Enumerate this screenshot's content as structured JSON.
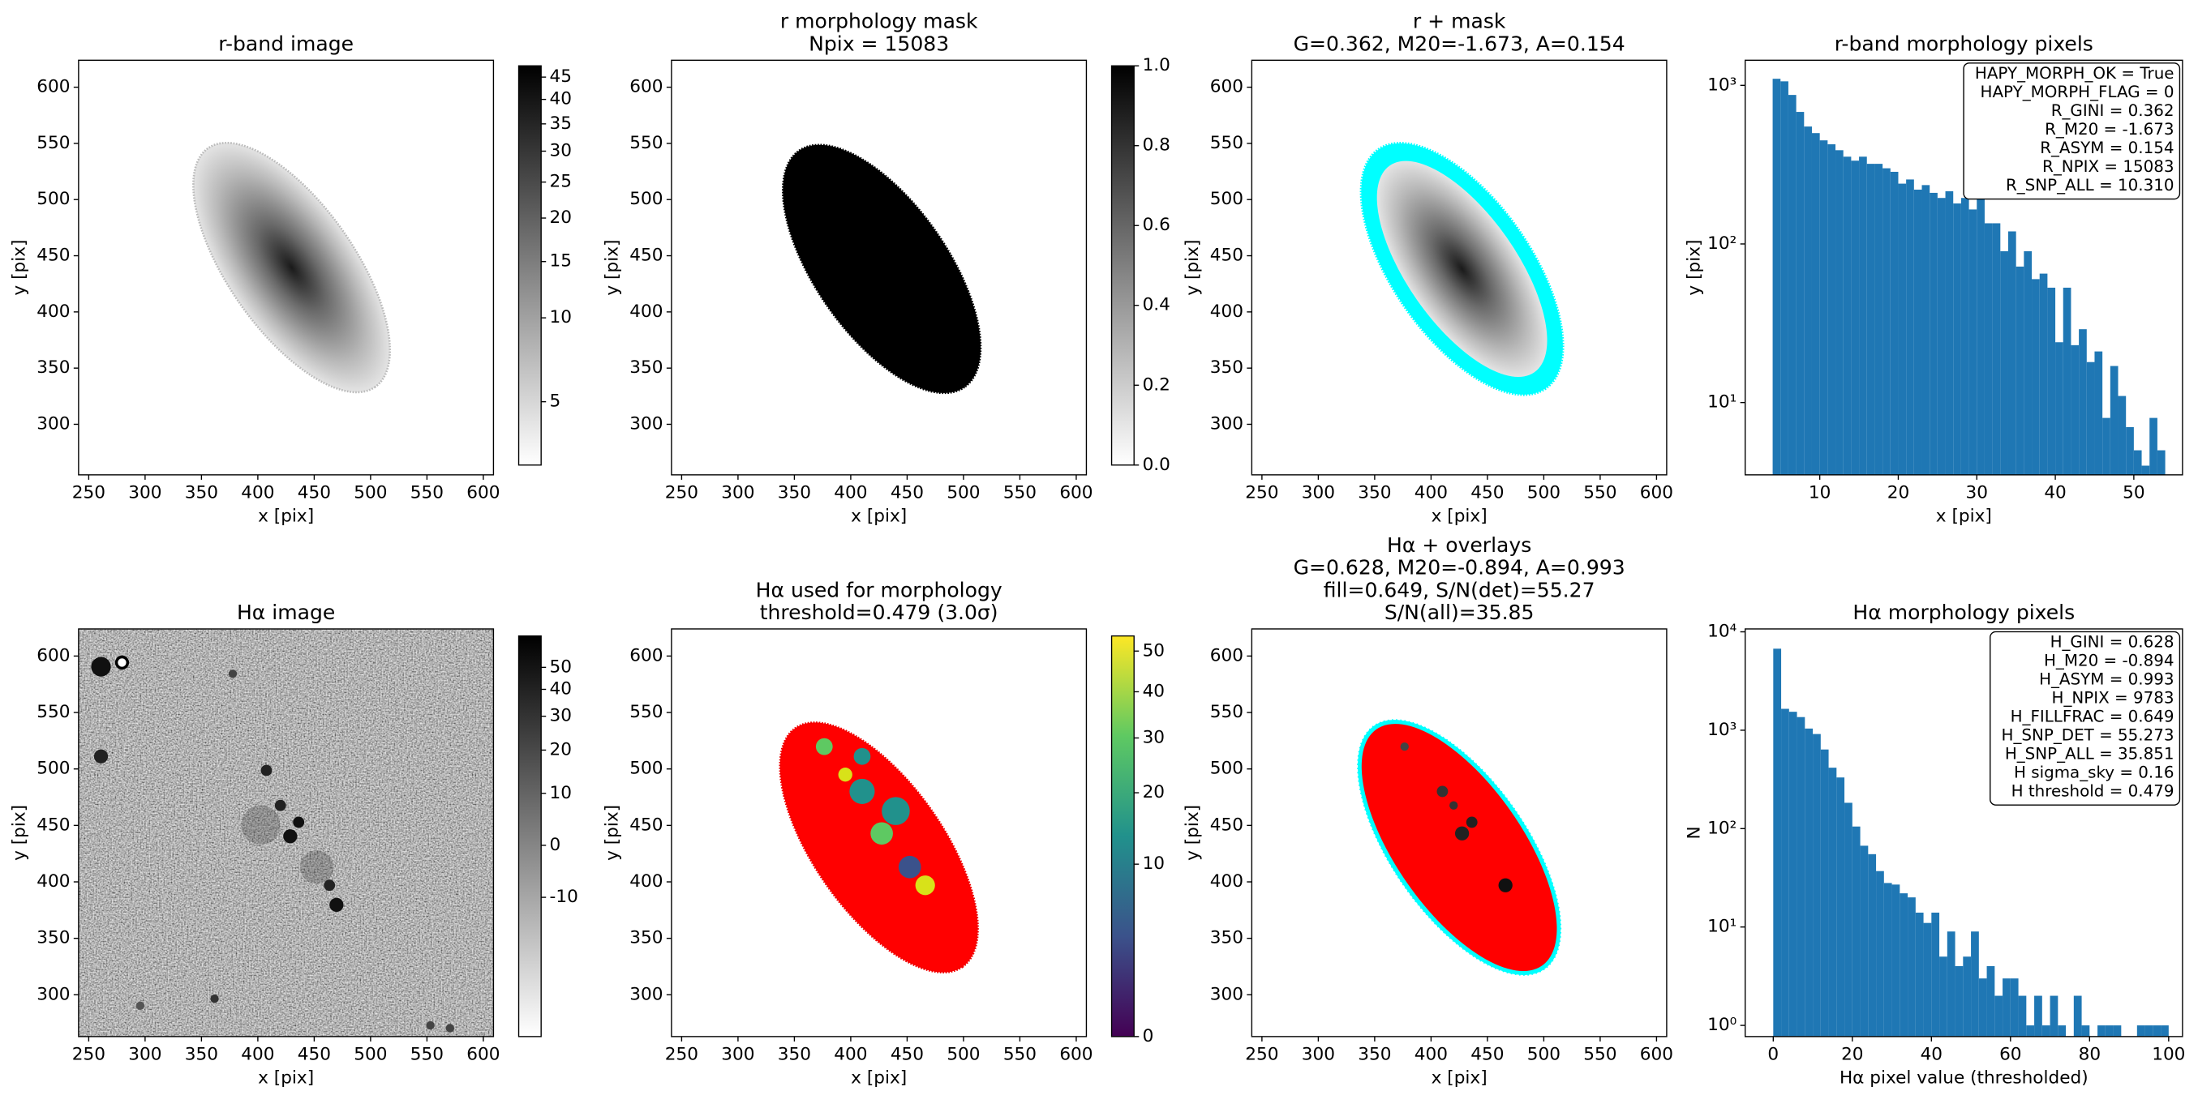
{
  "chart_data": [
    {
      "type": "image",
      "title": [
        "r-band image"
      ],
      "xlabel": "x [pix]",
      "ylabel": "y [pix]",
      "xlim": [
        241,
        609
      ],
      "ylim": [
        255,
        624
      ],
      "xticks": [
        250,
        300,
        350,
        400,
        450,
        500,
        550,
        600
      ],
      "yticks": [
        300,
        350,
        400,
        450,
        500,
        550,
        600
      ],
      "colorbar": {
        "colormap": "gray_r",
        "scale": "power",
        "exponent": 0.25,
        "lim": [
          2.7,
          47.7
        ],
        "ticks": [
          5,
          10,
          15,
          20,
          25,
          30,
          35,
          40,
          45
        ]
      }
    },
    {
      "type": "image",
      "title": [
        "r morphology mask",
        "Npix = 15083"
      ],
      "xlabel": "x [pix]",
      "ylabel": "y [pix]",
      "xlim": [
        241,
        609
      ],
      "ylim": [
        255,
        624
      ],
      "xticks": [
        250,
        300,
        350,
        400,
        450,
        500,
        550,
        600
      ],
      "yticks": [
        300,
        350,
        400,
        450,
        500,
        550,
        600
      ],
      "colorbar": {
        "colormap": "gray_r",
        "scale": "linear",
        "lim": [
          0,
          1
        ],
        "ticks": [
          {
            "value": 0,
            "label": "0.0"
          },
          {
            "value": 0.2,
            "label": "0.2"
          },
          {
            "value": 0.4,
            "label": "0.4"
          },
          {
            "value": 0.6,
            "label": "0.6"
          },
          {
            "value": 0.8,
            "label": "0.8"
          },
          {
            "value": 1,
            "label": "1.0"
          }
        ]
      }
    },
    {
      "type": "image",
      "title": [
        "r + mask",
        "G=0.362, M20=-1.673, A=0.154"
      ],
      "xlabel": "x [pix]",
      "ylabel": "y [pix]",
      "xlim": [
        241,
        609
      ],
      "ylim": [
        255,
        624
      ],
      "xticks": [
        250,
        300,
        350,
        400,
        450,
        500,
        550,
        600
      ],
      "yticks": [
        300,
        350,
        400,
        450,
        500,
        550,
        600
      ]
    },
    {
      "type": "histogram",
      "title": [
        "r-band morphology pixels"
      ],
      "xlabel": "x [pix]",
      "ylabel": "y [pix]",
      "color": "#1f77b4",
      "yscale": "log",
      "bins": [
        4,
        5,
        6,
        7,
        8,
        9,
        10,
        11,
        12,
        13,
        14,
        15,
        16,
        17,
        18,
        19,
        20,
        21,
        22,
        23,
        24,
        25,
        26,
        27,
        28,
        29,
        30,
        31,
        32,
        33,
        34,
        35,
        36,
        37,
        38,
        39,
        40,
        41,
        42,
        43,
        44,
        45,
        46,
        47,
        48,
        49,
        50,
        51,
        52,
        53,
        54
      ],
      "values": [
        1100,
        1060,
        870,
        680,
        550,
        500,
        450,
        425,
        390,
        355,
        335,
        355,
        320,
        320,
        300,
        285,
        240,
        255,
        220,
        235,
        210,
        195,
        215,
        180,
        195,
        165,
        240,
        135,
        135,
        90,
        120,
        72,
        90,
        60,
        65,
        53,
        24,
        53,
        23,
        29,
        18,
        21,
        8,
        17,
        11,
        7,
        5,
        4,
        8,
        5
      ],
      "xlim": [
        0.5,
        56.2
      ],
      "ylim": [
        3.5,
        1440
      ],
      "xticks": [
        10,
        20,
        30,
        40,
        50
      ],
      "yticks": [
        {
          "value": 10,
          "label": "10¹"
        },
        {
          "value": 100,
          "label": "10²"
        },
        {
          "value": 1000,
          "label": "10³"
        }
      ],
      "annotations": [
        "HAPY_MORPH_OK = True",
        "HAPY_MORPH_FLAG = 0",
        "R_GINI = 0.362",
        "R_M20 = -1.673",
        "R_ASYM = 0.154",
        "R_NPIX = 15083",
        "R_SNP_ALL = 10.310"
      ]
    },
    {
      "type": "image",
      "title": [
        "Hα image"
      ],
      "xlabel": "x [pix]",
      "ylabel": "y [pix]",
      "xlim": [
        241,
        609
      ],
      "ylim": [
        263,
        624
      ],
      "xticks": [
        250,
        300,
        350,
        400,
        450,
        500,
        550,
        600
      ],
      "yticks": [
        300,
        350,
        400,
        450,
        500,
        550,
        600
      ],
      "colorbar": {
        "colormap": "gray_r",
        "scale": "asinh",
        "softening": 20,
        "lim": [
          -57,
          68
        ],
        "ticks": [
          -10,
          0,
          10,
          20,
          30,
          40,
          50
        ]
      }
    },
    {
      "type": "image",
      "title": [
        "Hα used for morphology",
        "threshold=0.479 (3.0σ)"
      ],
      "xlabel": "x [pix]",
      "ylabel": "y [pix]",
      "xlim": [
        241,
        609
      ],
      "ylim": [
        263,
        624
      ],
      "xticks": [
        250,
        300,
        350,
        400,
        450,
        500,
        550,
        600
      ],
      "yticks": [
        300,
        350,
        400,
        450,
        500,
        550,
        600
      ],
      "colorbar": {
        "colormap": "viridis",
        "scale": "power",
        "exponent": 0.5,
        "lim": [
          0,
          54
        ],
        "ticks": [
          0,
          10,
          20,
          30,
          40,
          50
        ]
      }
    },
    {
      "type": "image",
      "title": [
        "Hα + overlays",
        "G=0.628, M20=-0.894, A=0.993",
        "fill=0.649, S/N(det)=55.27",
        "S/N(all)=35.85"
      ],
      "xlabel": "x [pix]",
      "ylabel": "y [pix]",
      "xlim": [
        241,
        609
      ],
      "ylim": [
        263,
        624
      ],
      "xticks": [
        250,
        300,
        350,
        400,
        450,
        500,
        550,
        600
      ],
      "yticks": [
        300,
        350,
        400,
        450,
        500,
        550,
        600
      ]
    },
    {
      "type": "histogram",
      "title": [
        "Hα morphology pixels"
      ],
      "xlabel": "Hα pixel value (thresholded)",
      "ylabel": "N",
      "color": "#1f77b4",
      "yscale": "log",
      "bins": [
        0,
        2,
        4,
        6,
        8,
        10,
        12,
        14,
        16,
        18,
        20,
        22,
        24,
        26,
        28,
        30,
        32,
        34,
        36,
        38,
        40,
        42,
        44,
        46,
        48,
        50,
        52,
        54,
        56,
        58,
        60,
        62,
        64,
        66,
        68,
        70,
        72,
        74,
        76,
        78,
        80,
        82,
        84,
        86,
        88,
        90,
        92,
        94,
        96,
        98,
        100
      ],
      "values": [
        6740,
        1650,
        1540,
        1360,
        1040,
        915,
        637,
        416,
        331,
        183,
        105,
        67,
        55,
        37,
        28,
        27,
        22,
        20,
        14,
        11,
        14,
        5,
        9,
        4,
        5,
        9,
        3,
        4,
        2,
        3,
        3,
        2,
        1,
        2,
        1,
        2,
        1,
        0,
        2,
        1,
        0,
        1,
        1,
        1,
        0,
        0,
        1,
        1,
        1,
        1
      ],
      "xlim": [
        -7.1,
        103.5
      ],
      "ylim": [
        0.77,
        10700
      ],
      "xticks": [
        0,
        20,
        40,
        60,
        80,
        100
      ],
      "yticks": [
        {
          "value": 1,
          "label": "10⁰"
        },
        {
          "value": 10,
          "label": "10¹"
        },
        {
          "value": 100,
          "label": "10²"
        },
        {
          "value": 1000,
          "label": "10³"
        },
        {
          "value": 10000,
          "label": "10⁴"
        }
      ],
      "annotations": [
        "H_GINI = 0.628",
        "H_M20 = -0.894",
        "H_ASYM = 0.993",
        "H_NPIX = 9783",
        "H_FILLFRAC = 0.649",
        "H_SNP_DET = 55.273",
        "H_SNP_ALL = 35.851",
        "H sigma_sky = 0.16",
        "H threshold = 0.479"
      ]
    }
  ]
}
